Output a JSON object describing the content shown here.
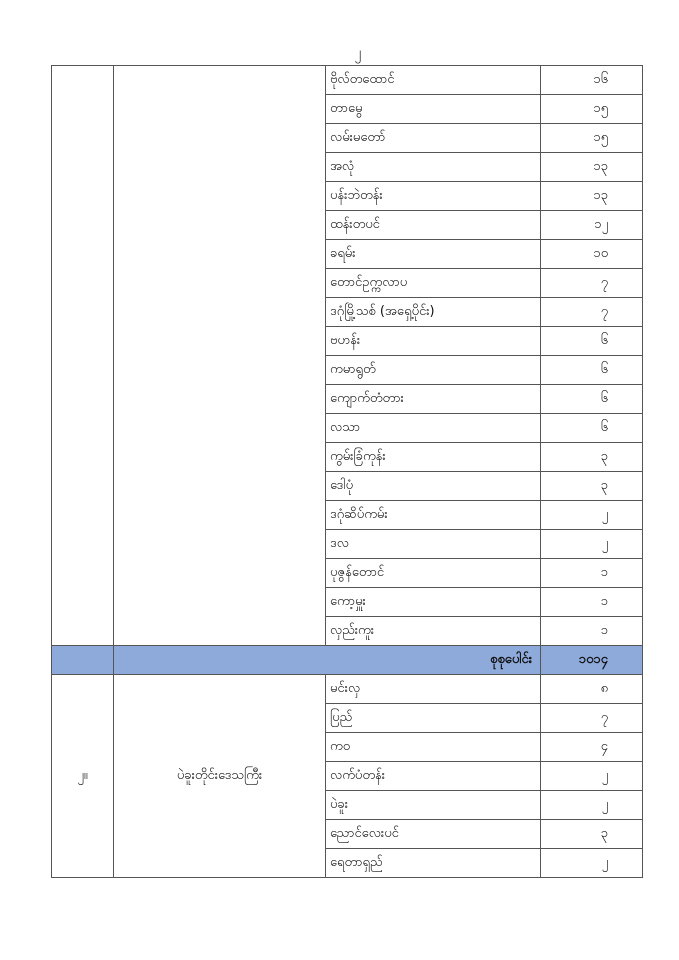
{
  "page_number": "၂",
  "section1": {
    "rows": [
      {
        "township": "ဗိုလ်တထောင်",
        "count": "၁၆"
      },
      {
        "township": "တာမွေ",
        "count": "၁၅"
      },
      {
        "township": "လမ်းမတော်",
        "count": "၁၅"
      },
      {
        "township": "အလုံ",
        "count": "၁၃"
      },
      {
        "township": "ပန်းဘဲတန်း",
        "count": "၁၃"
      },
      {
        "township": "ထန်းတပင်",
        "count": "၁၂"
      },
      {
        "township": "ခရမ်း",
        "count": "၁၀"
      },
      {
        "township": "တောင်ဥက္ကလာပ",
        "count": "၇"
      },
      {
        "township": "ဒဂုံမြို့သစ် (အရှေ့ပိုင်း)",
        "count": "၇"
      },
      {
        "township": "ဗဟန်း",
        "count": "၆"
      },
      {
        "township": "ကမာရွတ်",
        "count": "၆"
      },
      {
        "township": "ကျောက်တံတား",
        "count": "၆"
      },
      {
        "township": "လသာ",
        "count": "၆"
      },
      {
        "township": "ကွမ်းခြံကုန်း",
        "count": "၃"
      },
      {
        "township": "ဒေါပုံ",
        "count": "၃"
      },
      {
        "township": "ဒဂုံဆိပ်ကမ်း",
        "count": "၂"
      },
      {
        "township": "ဒလ",
        "count": "၂"
      },
      {
        "township": "ပုဇွန်တောင်",
        "count": "၁"
      },
      {
        "township": "ကော့မှူး",
        "count": "၁"
      },
      {
        "township": "လှည်းကူး",
        "count": "၁"
      }
    ],
    "total_label": "စုစုပေါင်း",
    "total_value": "၁၀၁၄"
  },
  "section2": {
    "number": "၂။",
    "region": "ပဲခူးတိုင်းဒေသကြီး",
    "rows": [
      {
        "township": "မင်းလှ",
        "count": "၈"
      },
      {
        "township": "ပြည်",
        "count": "၇"
      },
      {
        "township": "ကဝ",
        "count": "၄"
      },
      {
        "township": "လက်ပံတန်း",
        "count": "၂"
      },
      {
        "township": "ပဲခူး",
        "count": "၂"
      },
      {
        "township": "ညောင်လေးပင်",
        "count": "၃"
      },
      {
        "township": "ရေတာရှည်",
        "count": "၂"
      }
    ]
  },
  "colors": {
    "total_row_bg": "#8eaadb",
    "border": "#555555"
  }
}
